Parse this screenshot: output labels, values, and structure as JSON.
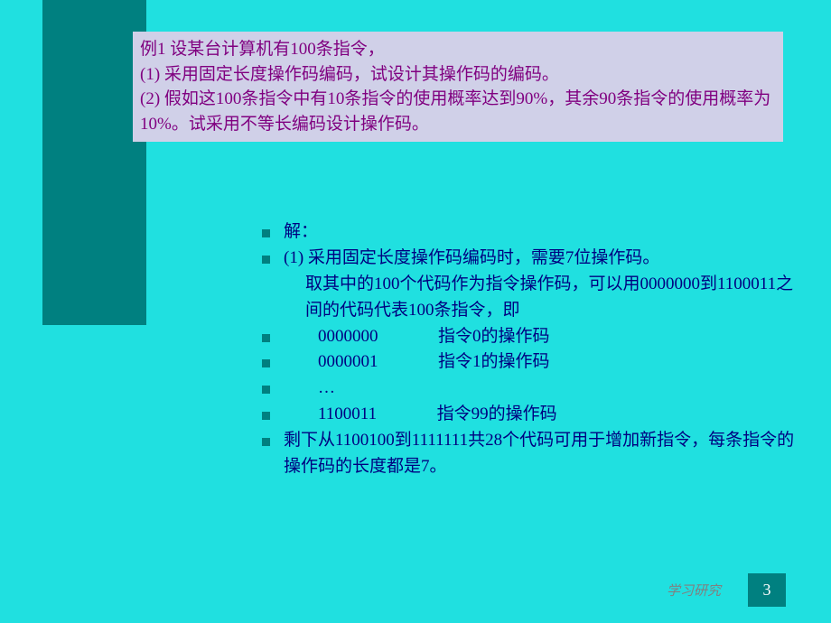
{
  "colors": {
    "background": "#20e0e0",
    "left_bar": "#008080",
    "problem_box_bg": "#d0d0e8",
    "problem_text": "#800080",
    "content_text": "#000080",
    "bullet": "#008080",
    "footer_text": "#808080",
    "page_box_bg": "#008080",
    "page_number": "#ffffff"
  },
  "problem": {
    "line1": "例1 设某台计算机有100条指令，",
    "line2": "(1) 采用固定长度操作码编码，试设计其操作码的编码。",
    "line3": "(2) 假如这100条指令中有10条指令的使用概率达到90%，其余90条指令的使用概率为10%。试采用不等长编码设计操作码。"
  },
  "solution": {
    "header": "解：",
    "part1_line1": "(1) 采用固定长度操作码编码时，需要7位操作码。",
    "part1_line2": "取其中的100个代码作为指令操作码，可以用0000000到1100011之间的代码代表100条指令，即",
    "code0": "        0000000              指令0的操作码",
    "code1": "        0000001              指令1的操作码",
    "dots": "        …",
    "code99": "        1100011              指令99的操作码",
    "remainder": "剩下从1100100到1111111共28个代码可用于增加新指令，每条指令的操作码的长度都是7。"
  },
  "footer": {
    "label": "学习研究",
    "page": "3"
  }
}
